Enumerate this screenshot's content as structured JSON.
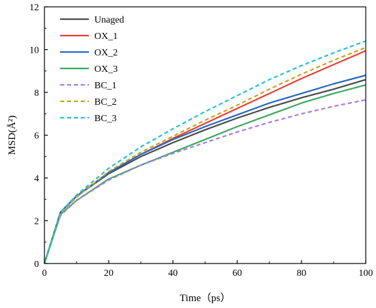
{
  "chart_data": {
    "type": "line",
    "xlabel": "Time（ps）",
    "ylabel": "MSD(Å²)",
    "xlim": [
      0,
      100
    ],
    "ylim": [
      0,
      12
    ],
    "xticks": [
      0,
      20,
      40,
      60,
      80,
      100
    ],
    "yticks": [
      0,
      2,
      4,
      6,
      8,
      10,
      12
    ],
    "grid": false,
    "legend_position": "top-left",
    "x": [
      0,
      5,
      10,
      20,
      30,
      40,
      50,
      60,
      70,
      80,
      90,
      100
    ],
    "series": [
      {
        "name": "Unaged",
        "color": "#4a4a4a",
        "dash": "solid",
        "values": [
          0,
          2.4,
          3.15,
          4.2,
          5.0,
          5.65,
          6.25,
          6.8,
          7.3,
          7.75,
          8.15,
          8.6
        ]
      },
      {
        "name": "OX_1",
        "color": "#e8403a",
        "dash": "solid",
        "values": [
          0,
          2.4,
          3.15,
          4.25,
          5.1,
          5.85,
          6.55,
          7.25,
          7.95,
          8.65,
          9.3,
          9.95
        ]
      },
      {
        "name": "OX_2",
        "color": "#2466c8",
        "dash": "solid",
        "values": [
          0,
          2.4,
          3.15,
          4.25,
          5.1,
          5.8,
          6.4,
          6.95,
          7.5,
          7.95,
          8.4,
          8.8
        ]
      },
      {
        "name": "OX_3",
        "color": "#3aa860",
        "dash": "solid",
        "values": [
          0,
          2.3,
          2.95,
          3.95,
          4.6,
          5.2,
          5.8,
          6.4,
          6.95,
          7.5,
          7.95,
          8.35
        ]
      },
      {
        "name": "BC_1",
        "color": "#a87ce0",
        "dash": "dashed",
        "values": [
          0,
          2.25,
          2.95,
          3.9,
          4.6,
          5.15,
          5.65,
          6.15,
          6.6,
          7.0,
          7.35,
          7.65
        ]
      },
      {
        "name": "BC_2",
        "color": "#c9a21e",
        "dash": "dashed",
        "values": [
          0,
          2.35,
          3.1,
          4.3,
          5.2,
          5.95,
          6.7,
          7.4,
          8.15,
          8.85,
          9.5,
          10.1
        ]
      },
      {
        "name": "BC_3",
        "color": "#21c3d0",
        "dash": "dashed",
        "values": [
          0,
          2.4,
          3.2,
          4.45,
          5.45,
          6.3,
          7.1,
          7.85,
          8.6,
          9.25,
          9.85,
          10.4
        ]
      }
    ]
  }
}
